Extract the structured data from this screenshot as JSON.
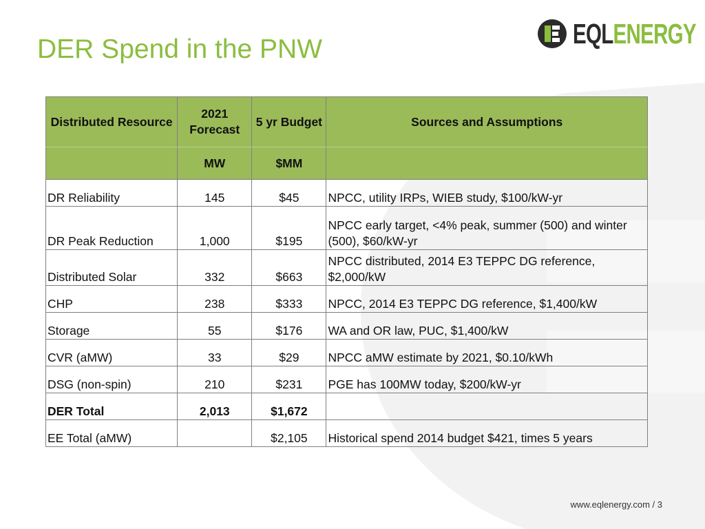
{
  "slide": {
    "title": "DER Spend in the PNW"
  },
  "logo": {
    "brand_part1": "EQL",
    "brand_part2": "ENERGY",
    "accent_color": "#8bbd3f"
  },
  "table": {
    "headers": {
      "resource": "Distributed Resource",
      "forecast": "2021 Forecast",
      "budget": "5 yr Budget",
      "sources": "Sources and Assumptions"
    },
    "units": {
      "forecast": "MW",
      "budget": "$MM"
    },
    "rows": [
      {
        "resource": "DR Reliability",
        "mw": "145",
        "budget": "$45",
        "sources": "NPCC, utility IRPs, WIEB study, $100/kW-yr"
      },
      {
        "resource": "DR Peak Reduction",
        "mw": "1,000",
        "budget": "$195",
        "sources": "NPCC early target, <4% peak, summer (500) and winter (500), $60/kW-yr"
      },
      {
        "resource": "Distributed Solar",
        "mw": "332",
        "budget": "$663",
        "sources": "NPCC distributed, 2014 E3 TEPPC DG reference, $2,000/kW"
      },
      {
        "resource": "CHP",
        "mw": "238",
        "budget": "$333",
        "sources": "NPCC, 2014 E3 TEPPC DG reference, $1,400/kW"
      },
      {
        "resource": "Storage",
        "mw": "55",
        "budget": "$176",
        "sources": "WA and OR law, PUC, $1,400/kW"
      },
      {
        "resource": "CVR (aMW)",
        "mw": "33",
        "budget": "$29",
        "sources": "NPCC aMW estimate by 2021, $0.10/kWh"
      },
      {
        "resource": "DSG (non-spin)",
        "mw": "210",
        "budget": "$231",
        "sources": "PGE has 100MW today, $200/kW-yr"
      },
      {
        "resource": "DER Total",
        "mw": "2,013",
        "budget": "$1,672",
        "sources": ""
      },
      {
        "resource": "EE Total (aMW)",
        "mw": "",
        "budget": "$2,105",
        "sources": "Historical spend 2014 budget $421, times 5 years"
      }
    ]
  },
  "footer": {
    "url": "www.eqlenergy.com",
    "separator": " / ",
    "page_number": "3"
  }
}
